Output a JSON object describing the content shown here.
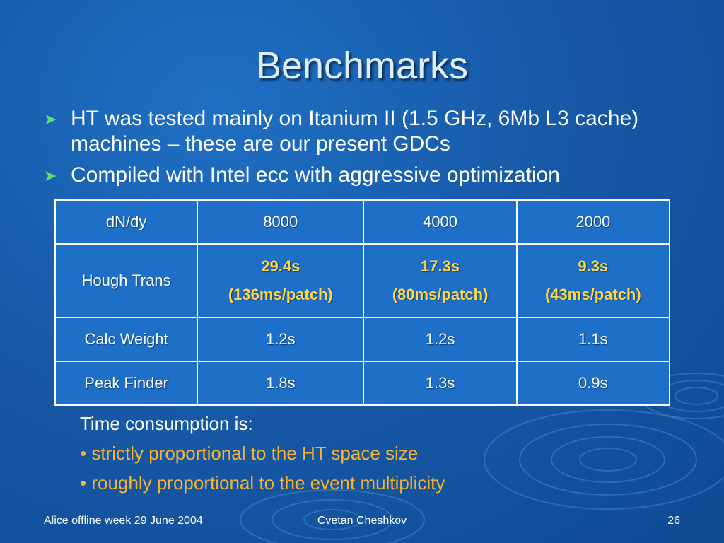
{
  "slide": {
    "title": "Benchmarks",
    "bullets": [
      "HT was tested mainly on Itanium II (1.5 GHz, 6Mb L3 cache) machines – these are our present GDCs",
      "Compiled with Intel ecc with aggressive optimization"
    ]
  },
  "table": {
    "header": [
      "dN/dy",
      "8000",
      "4000",
      "2000"
    ],
    "rows": [
      {
        "label": "Hough Trans",
        "cells": [
          {
            "time": "29.4s",
            "detail": "(136ms/patch)"
          },
          {
            "time": "17.3s",
            "detail": "(80ms/patch)"
          },
          {
            "time": "9.3s",
            "detail": "(43ms/patch)"
          }
        ]
      },
      {
        "label": "Calc Weight",
        "cells": [
          "1.2s",
          "1.2s",
          "1.1s"
        ]
      },
      {
        "label": "Peak Finder",
        "cells": [
          "1.8s",
          "1.3s",
          "0.9s"
        ]
      }
    ]
  },
  "note": {
    "intro": "Time consumption is:",
    "points": [
      "• strictly proportional to the  HT space size",
      "• roughly proportional to the event multiplicity"
    ]
  },
  "footer": {
    "left": "Alice offline week 29 June 2004",
    "center": "Cvetan Cheshkov",
    "page": "26"
  },
  "colors": {
    "background": "#175aa8",
    "highlight": "#ffd54a",
    "note_orange": "#f4b330",
    "bullet_arrow": "#5fe06a"
  }
}
